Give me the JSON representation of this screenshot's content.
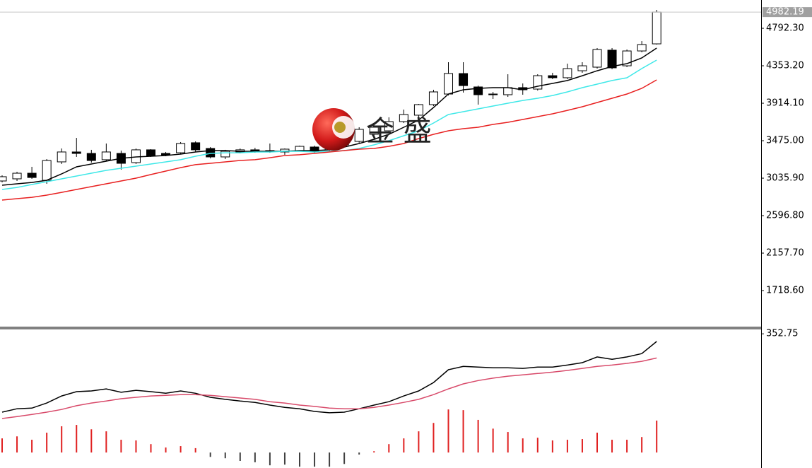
{
  "chart_data": [
    {
      "type": "candlestick",
      "watermark": "金 盛",
      "open": [
        3003,
        3028,
        3094,
        3011,
        3227,
        3343,
        3326,
        3252,
        3326,
        3218,
        3368,
        3326,
        3334,
        3451,
        3384,
        3285,
        3343,
        3368,
        3359,
        3343,
        3359,
        3401,
        3368,
        3426,
        3467,
        3550,
        3591,
        3699,
        3774,
        3898,
        4022,
        4262,
        4105,
        4022,
        4014,
        4097,
        4080,
        4237,
        4213,
        4295,
        4337,
        4536,
        4353,
        4527,
        4610
      ],
      "high": [
        3069,
        3111,
        3169,
        3260,
        3384,
        3508,
        3368,
        3442,
        3359,
        3384,
        3376,
        3343,
        3459,
        3467,
        3401,
        3368,
        3384,
        3392,
        3442,
        3384,
        3417,
        3417,
        3467,
        3591,
        3633,
        3666,
        3749,
        3840,
        3906,
        4072,
        4395,
        4395,
        4121,
        4047,
        4254,
        4146,
        4254,
        4271,
        4378,
        4395,
        4561,
        4561,
        4544,
        4643,
        5008
      ],
      "low": [
        2986,
        3003,
        3028,
        2970,
        3202,
        3285,
        3218,
        3235,
        3136,
        3202,
        3285,
        3293,
        3318,
        3343,
        3268,
        3260,
        3326,
        3334,
        3334,
        3310,
        3351,
        3334,
        3351,
        3409,
        3451,
        3533,
        3575,
        3682,
        3749,
        3881,
        4005,
        4039,
        3898,
        3964,
        3989,
        4014,
        4063,
        4196,
        4196,
        4271,
        4320,
        4312,
        4337,
        4511,
        4602
      ],
      "close": [
        3053,
        3094,
        3044,
        3243,
        3343,
        3326,
        3243,
        3343,
        3210,
        3368,
        3301,
        3310,
        3442,
        3368,
        3285,
        3351,
        3368,
        3343,
        3351,
        3376,
        3409,
        3351,
        3442,
        3550,
        3608,
        3633,
        3699,
        3782,
        3898,
        4047,
        4262,
        4121,
        4014,
        4014,
        4097,
        4072,
        4237,
        4213,
        4320,
        4353,
        4544,
        4329,
        4527,
        4602,
        4982.19
      ],
      "up_color": "#ffffff",
      "down_color": "#000000",
      "outline_color": "#000000",
      "lines": [
        {
          "color": "#000000",
          "values": [
            2953,
            2970,
            2986,
            3011,
            3086,
            3169,
            3202,
            3235,
            3268,
            3285,
            3293,
            3301,
            3318,
            3343,
            3359,
            3359,
            3351,
            3351,
            3351,
            3351,
            3359,
            3359,
            3368,
            3401,
            3442,
            3492,
            3550,
            3633,
            3716,
            3865,
            4022,
            4072,
            4088,
            4097,
            4097,
            4072,
            4113,
            4146,
            4180,
            4237,
            4295,
            4345,
            4378,
            4445,
            4561
          ]
        },
        {
          "color": "#3ee8e8",
          "values": [
            2904,
            2928,
            2962,
            2995,
            3028,
            3061,
            3094,
            3127,
            3152,
            3177,
            3202,
            3227,
            3252,
            3293,
            3326,
            3334,
            3334,
            3343,
            3343,
            3351,
            3351,
            3343,
            3351,
            3359,
            3384,
            3426,
            3475,
            3533,
            3591,
            3682,
            3782,
            3815,
            3848,
            3881,
            3914,
            3947,
            3972,
            4005,
            4047,
            4097,
            4138,
            4180,
            4213,
            4320,
            4420
          ]
        },
        {
          "color": "#e82020",
          "values": [
            2779,
            2796,
            2812,
            2837,
            2870,
            2904,
            2937,
            2970,
            3003,
            3036,
            3078,
            3119,
            3160,
            3194,
            3210,
            3227,
            3243,
            3252,
            3276,
            3301,
            3310,
            3326,
            3343,
            3359,
            3376,
            3384,
            3409,
            3442,
            3500,
            3550,
            3591,
            3616,
            3633,
            3666,
            3691,
            3724,
            3757,
            3790,
            3831,
            3873,
            3923,
            3972,
            4022,
            4088,
            4188
          ]
        }
      ],
      "ylim": [
        1288,
        5124
      ],
      "yticks": [
        {
          "value": 4792.3,
          "label": "4792.30"
        },
        {
          "value": 4353.2,
          "label": "4353.20"
        },
        {
          "value": 3914.1,
          "label": "3914.10"
        },
        {
          "value": 3475,
          "label": "3475.00"
        },
        {
          "value": 3035.9,
          "label": "3035.90"
        },
        {
          "value": 2596.8,
          "label": "2596.80"
        },
        {
          "value": 2157.7,
          "label": "2157.70"
        },
        {
          "value": 1718.6,
          "label": "1718.60"
        }
      ]
    },
    {
      "type": "macd",
      "lines": [
        {
          "color": "#000000",
          "values": [
            120,
            130,
            132,
            147,
            168,
            181,
            183,
            189,
            179,
            185,
            181,
            176,
            183,
            176,
            164,
            158,
            153,
            149,
            141,
            134,
            130,
            122,
            118,
            120,
            130,
            141,
            151,
            168,
            183,
            208,
            246,
            256,
            254,
            252,
            252,
            250,
            254,
            254,
            260,
            267,
            284,
            277,
            284,
            294,
            330
          ]
        },
        {
          "color": "#d84a6a",
          "values": [
            101,
            107,
            113,
            120,
            128,
            139,
            147,
            153,
            160,
            164,
            168,
            170,
            172,
            172,
            170,
            166,
            162,
            158,
            151,
            147,
            141,
            137,
            132,
            130,
            130,
            134,
            141,
            149,
            158,
            172,
            189,
            204,
            214,
            221,
            227,
            231,
            235,
            239,
            244,
            250,
            256,
            260,
            265,
            271,
            281
          ]
        }
      ],
      "histogram": [
        42,
        48,
        38,
        59,
        78,
        82,
        69,
        63,
        38,
        36,
        25,
        15,
        19,
        13,
        -13,
        -17,
        -25,
        -29,
        -38,
        -36,
        -42,
        -42,
        -42,
        -34,
        -6,
        4,
        25,
        42,
        63,
        88,
        128,
        126,
        97,
        71,
        61,
        42,
        44,
        36,
        38,
        40,
        59,
        38,
        38,
        46,
        95
      ],
      "pos_color": "#e02020",
      "neg_color": "#404040",
      "ylim": [
        -46,
        370
      ],
      "yticks": [
        352.75
      ]
    }
  ]
}
